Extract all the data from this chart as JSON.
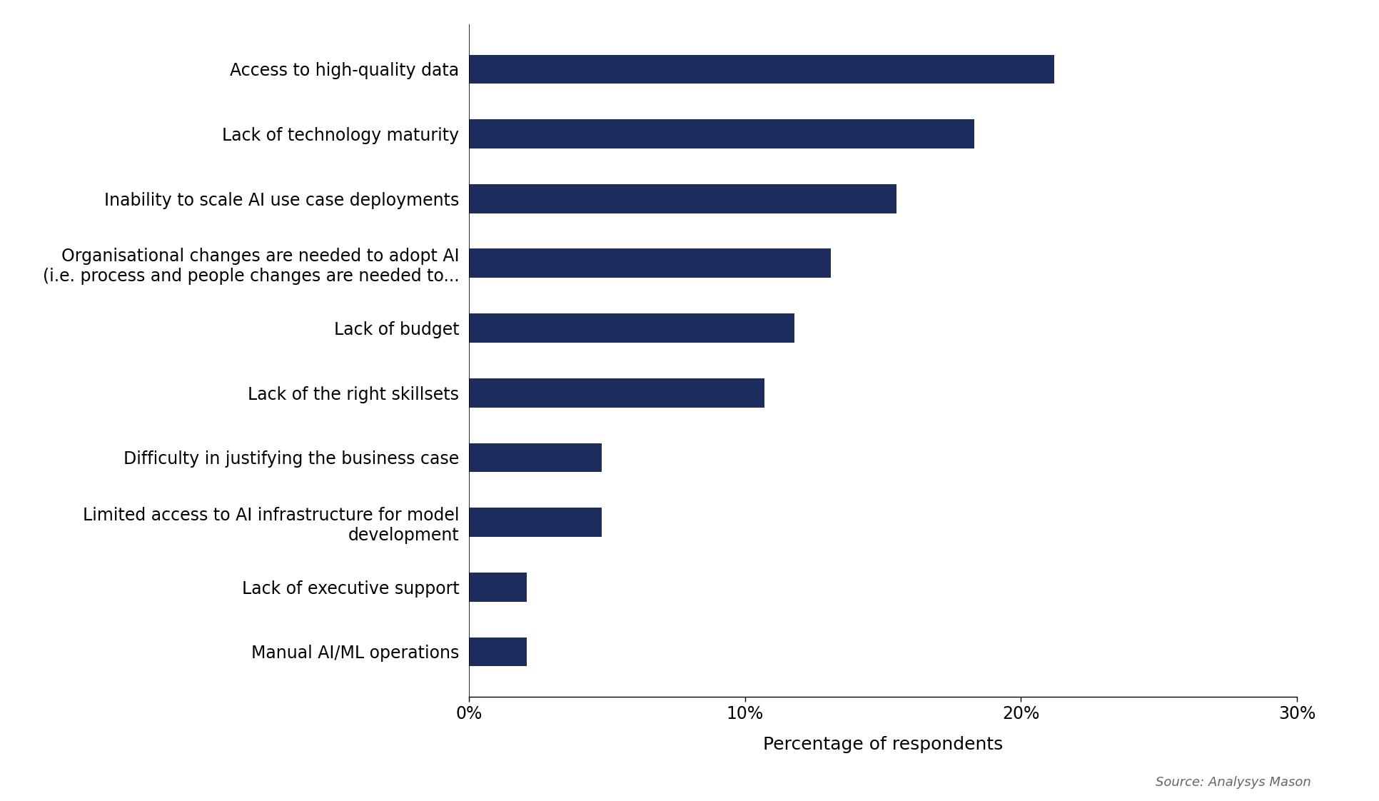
{
  "categories": [
    "Manual AI/ML operations",
    "Lack of executive support",
    "Limited access to AI infrastructure for model\ndevelopment",
    "Difficulty in justifying the business case",
    "Lack of the right skillsets",
    "Lack of budget",
    "Organisational changes are needed to adopt AI\n(i.e. process and people changes are needed to...",
    "Inability to scale AI use case deployments",
    "Lack of technology maturity",
    "Access to high-quality data"
  ],
  "values": [
    0.021,
    0.021,
    0.048,
    0.048,
    0.107,
    0.118,
    0.131,
    0.155,
    0.183,
    0.212
  ],
  "bar_color": "#1c2d5e",
  "xlabel": "Percentage of respondents",
  "xlim": [
    0,
    0.3
  ],
  "xticks": [
    0,
    0.1,
    0.2,
    0.3
  ],
  "xticklabels": [
    "0%",
    "10%",
    "20%",
    "30%"
  ],
  "source_text": "Source: Analysys Mason",
  "background_color": "#ffffff",
  "label_fontsize": 17,
  "tick_fontsize": 17,
  "xlabel_fontsize": 18,
  "source_fontsize": 13
}
